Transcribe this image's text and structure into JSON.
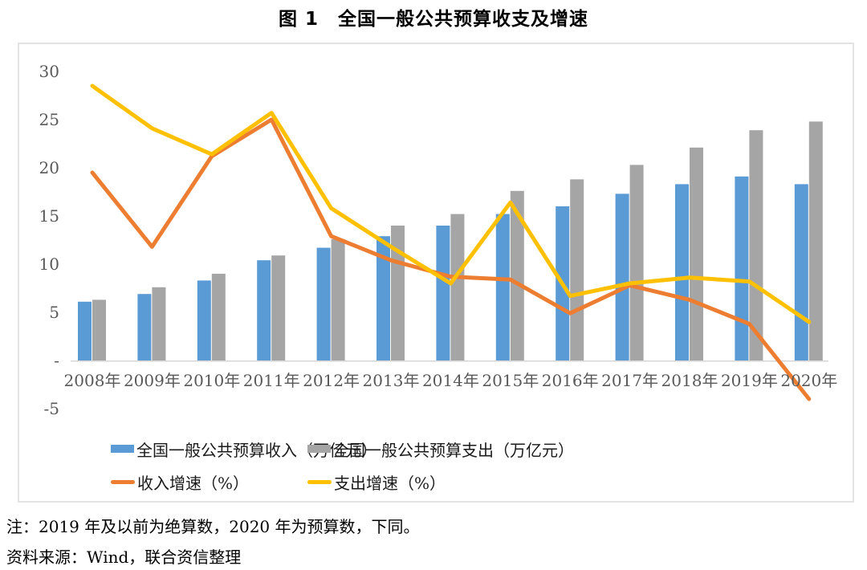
{
  "figure": {
    "title": "图 1　全国一般公共预算收支及增速",
    "note": "注：2019 年及以前为绝算数，2020 年为预算数，下同。",
    "source": "资料来源：Wind，联合资信整理"
  },
  "chart_data": {
    "type": "bar+line",
    "categories": [
      "2008年",
      "2009年",
      "2010年",
      "2011年",
      "2012年",
      "2013年",
      "2014年",
      "2015年",
      "2016年",
      "2017年",
      "2018年",
      "2019年",
      "2020年"
    ],
    "series": [
      {
        "name": "全国一般公共预算收入（万亿元）",
        "type": "bar",
        "color": "#5B9BD5",
        "values": [
          6.1,
          6.9,
          8.3,
          10.4,
          11.7,
          12.9,
          14.0,
          15.2,
          16.0,
          17.3,
          18.3,
          19.1,
          18.3
        ]
      },
      {
        "name": "全国一般公共预算支出（万亿元）",
        "type": "bar",
        "color": "#A5A5A5",
        "values": [
          6.3,
          7.6,
          9.0,
          10.9,
          12.6,
          14.0,
          15.2,
          17.6,
          18.8,
          20.3,
          22.1,
          23.9,
          24.8
        ]
      },
      {
        "name": "收入增速（%）",
        "type": "line",
        "color": "#ED7D31",
        "values": [
          19.5,
          11.8,
          21.2,
          25.0,
          12.9,
          10.4,
          8.7,
          8.4,
          4.9,
          7.8,
          6.3,
          3.8,
          -4.0
        ]
      },
      {
        "name": "支出增速（%）",
        "type": "line",
        "color": "#FFC000",
        "values": [
          28.5,
          24.1,
          21.4,
          25.7,
          15.8,
          11.8,
          8.0,
          16.4,
          6.7,
          8.0,
          8.6,
          8.2,
          4.0
        ]
      }
    ],
    "ylim": [
      -5,
      30
    ],
    "yticks": [
      {
        "value": 30,
        "label": "30"
      },
      {
        "value": 25,
        "label": "25"
      },
      {
        "value": 20,
        "label": "20"
      },
      {
        "value": 15,
        "label": "15"
      },
      {
        "value": 10,
        "label": "10"
      },
      {
        "value": 5,
        "label": "5"
      },
      {
        "value": 0,
        "label": "-"
      },
      {
        "value": -5,
        "label": "-5"
      }
    ],
    "grid": false,
    "legend_position": "bottom",
    "axis_color": "#d6d6d6",
    "tick_label_color": "#595959"
  }
}
